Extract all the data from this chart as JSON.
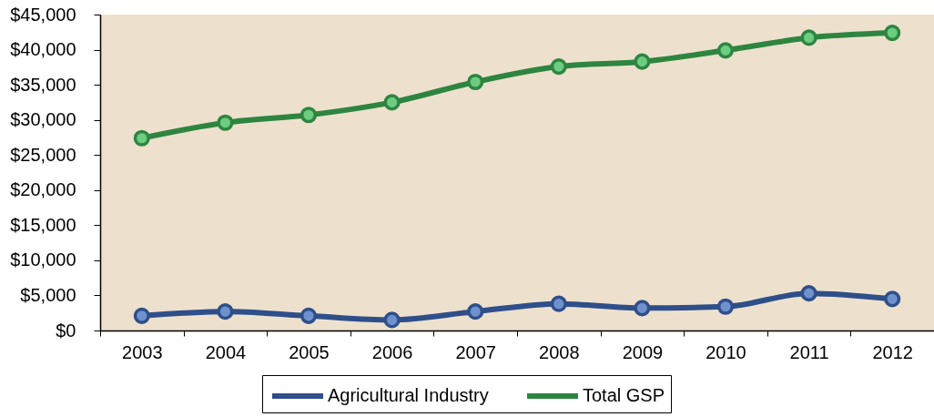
{
  "chart_data": {
    "type": "line",
    "categories": [
      "2003",
      "2004",
      "2005",
      "2006",
      "2007",
      "2008",
      "2009",
      "2010",
      "2011",
      "2012"
    ],
    "series": [
      {
        "name": "Agricultural Industry",
        "color": "#2f4f8a",
        "values": [
          2100,
          2700,
          2100,
          1500,
          2700,
          3800,
          3200,
          3400,
          5300,
          4500
        ]
      },
      {
        "name": "Total GSP",
        "color": "#2e8540",
        "values": [
          27400,
          29600,
          30700,
          32500,
          35400,
          37600,
          38300,
          39900,
          41700,
          42400
        ]
      }
    ],
    "ylim": [
      0,
      45000
    ],
    "yticks": [
      {
        "value": 0,
        "label": "$0"
      },
      {
        "value": 5000,
        "label": "$5,000"
      },
      {
        "value": 10000,
        "label": "$10,000"
      },
      {
        "value": 15000,
        "label": "$15,000"
      },
      {
        "value": 20000,
        "label": "$20,000"
      },
      {
        "value": 25000,
        "label": "$25,000"
      },
      {
        "value": 30000,
        "label": "$30,000"
      },
      {
        "value": 35000,
        "label": "$35,000"
      },
      {
        "value": 40000,
        "label": "$40,000"
      },
      {
        "value": 45000,
        "label": "$45,000"
      }
    ],
    "grid": false,
    "legend": "bottom",
    "marker": "circle",
    "line_style": "solid"
  }
}
